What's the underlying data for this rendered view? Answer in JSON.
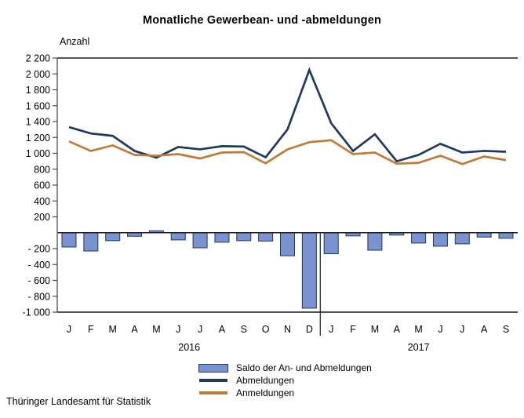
{
  "title": "Monatliche Gewerbean- und -abmeldungen",
  "footer": {
    "source": "Thüringer Landesamt für Statistik"
  },
  "chart_data": {
    "type": "combo-bar-line",
    "title": "Monatliche Gewerbean- und -abmeldungen",
    "y_axis_label": "Anzahl",
    "ylim": [
      -1000,
      2200
    ],
    "grid": false,
    "legend_position": "bottom-center",
    "ytick_values": [
      2200,
      2000,
      1800,
      1600,
      1400,
      1200,
      1000,
      800,
      600,
      400,
      200,
      -200,
      -400,
      -600,
      -800,
      -1000
    ],
    "ytick_labels": [
      "2 200",
      "2 000",
      "1 800",
      "1 600",
      "1 400",
      "1 200",
      "1 000",
      "800",
      "600",
      "400",
      "200",
      "- 200",
      "- 400",
      "- 600",
      "- 800",
      "-1 000"
    ],
    "zero_line": true,
    "months": [
      "J",
      "F",
      "M",
      "A",
      "M",
      "J",
      "J",
      "A",
      "S",
      "O",
      "N",
      "D",
      "J",
      "F",
      "M",
      "A",
      "M",
      "J",
      "J",
      "A",
      "S"
    ],
    "year_groups": [
      {
        "label": "2016",
        "month_count": 12
      },
      {
        "label": "2017",
        "month_count": 9
      }
    ],
    "series": [
      {
        "name": "Saldo der An- und Abmeldungen",
        "type": "bar",
        "color": "#7a92cf",
        "border_color": "#1f3a5e",
        "values": [
          -180,
          -230,
          -100,
          -45,
          25,
          -90,
          -190,
          -120,
          -100,
          -105,
          -290,
          -950,
          -265,
          -40,
          -220,
          -30,
          -130,
          -170,
          -140,
          -55,
          -70
        ]
      },
      {
        "name": "Abmeldungen",
        "type": "line",
        "color": "#1f3a5e",
        "values": [
          1330,
          1250,
          1220,
          1030,
          945,
          1080,
          1050,
          1090,
          1085,
          950,
          1300,
          2050,
          1380,
          1030,
          1240,
          900,
          980,
          1120,
          1010,
          1030,
          1020
        ]
      },
      {
        "name": "Anmeldungen",
        "type": "line",
        "color": "#c27a3a",
        "values": [
          1150,
          1030,
          1100,
          980,
          970,
          990,
          935,
          1010,
          1015,
          875,
          1050,
          1140,
          1165,
          990,
          1010,
          870,
          880,
          970,
          865,
          960,
          915
        ]
      }
    ]
  }
}
